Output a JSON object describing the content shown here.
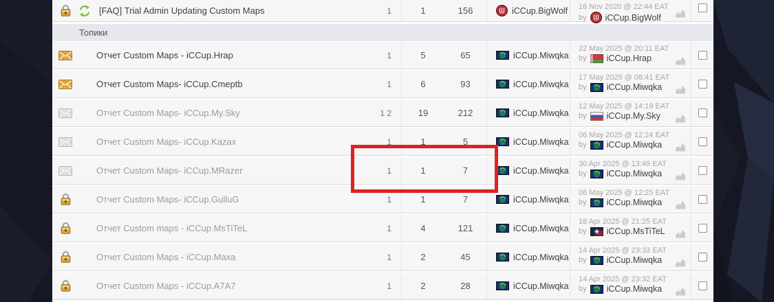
{
  "section_header": "Топики",
  "colors": {
    "annotation_red": "#dd2222",
    "page_link_blue": "#4d79b2",
    "unread_title": "#3f3f3f",
    "read_title": "#9b9b9b",
    "section_bar_bg": "#e6e8ee",
    "dark_background": "#151824"
  },
  "annotation": {
    "shape": "rectangle",
    "color": "#dd2222"
  },
  "sticky_topic": {
    "status_icon": "lock-icon",
    "extra_icon": "refresh-icon",
    "unread": true,
    "title": "[FAQ] Trial Admin Updating Custom Maps",
    "pages": "1",
    "replies": "1",
    "views": "156",
    "author": {
      "name": "iCCup.BigWolf",
      "icon": "bigwolf-avatar-icon"
    },
    "last_post": {
      "date": "16 Nov 2020 @ 22:44 EAT",
      "by_label": "by",
      "user": "iCCup.BigWolf",
      "icon": "bigwolf-avatar-icon"
    }
  },
  "topics": [
    {
      "status_icon": "envelope-new-icon",
      "unread": true,
      "title": "Отчет Custom Maps - iCCup.Hrap",
      "pages": "1",
      "replies": "5",
      "views": "65",
      "author": {
        "name": "iCCup.Miwqka",
        "icon": "miwqka-flag-icon"
      },
      "last_post": {
        "date": "22 May 2025 @ 20:11 EAT",
        "by_label": "by",
        "user": "iCCup.Hrap",
        "icon": "belarus-flag-icon"
      }
    },
    {
      "status_icon": "envelope-new-icon",
      "unread": true,
      "title": "Отчет Custom Maps- iCCup.Cmeptb",
      "pages": "1",
      "replies": "6",
      "views": "93",
      "author": {
        "name": "iCCup.Miwqka",
        "icon": "miwqka-flag-icon"
      },
      "last_post": {
        "date": "17 May 2025 @ 08:41 EAT",
        "by_label": "by",
        "user": "iCCup.Miwqka",
        "icon": "miwqka-flag-icon"
      }
    },
    {
      "status_icon": "envelope-read-icon",
      "unread": false,
      "title": "Отчет Custom Maps- iCCup.My.Sky",
      "pages": "1 2",
      "replies": "19",
      "views": "212",
      "author": {
        "name": "iCCup.Miwqka",
        "icon": "miwqka-flag-icon"
      },
      "last_post": {
        "date": "12 May 2025 @ 14:19 EAT",
        "by_label": "by",
        "user": "iCCup.My.Sky",
        "icon": "russia-flag-icon"
      }
    },
    {
      "status_icon": "envelope-read-icon",
      "unread": false,
      "title": "Отчет Custom Maps- iCCup.Kazax",
      "pages": "1",
      "replies": "1",
      "views": "5",
      "author": {
        "name": "iCCup.Miwqka",
        "icon": "miwqka-flag-icon"
      },
      "last_post": {
        "date": "06 May 2025 @ 12:24 EAT",
        "by_label": "by",
        "user": "iCCup.Miwqka",
        "icon": "miwqka-flag-icon"
      }
    },
    {
      "status_icon": "envelope-read-icon",
      "unread": false,
      "highlighted": true,
      "title": "Отчет Custom Maps- iCCup.MRazer",
      "pages": "1",
      "replies": "1",
      "views": "7",
      "author": {
        "name": "iCCup.Miwqka",
        "icon": "miwqka-flag-icon"
      },
      "last_post": {
        "date": "30 Apr 2025 @ 13:49 EAT",
        "by_label": "by",
        "user": "iCCup.Miwqka",
        "icon": "miwqka-flag-icon"
      }
    },
    {
      "status_icon": "lock-icon",
      "unread": false,
      "title": "Отчет Custom Maps- iCCup.GulluG",
      "pages": "1",
      "replies": "1",
      "views": "7",
      "author": {
        "name": "iCCup.Miwqka",
        "icon": "miwqka-flag-icon"
      },
      "last_post": {
        "date": "06 May 2025 @ 12:25 EAT",
        "by_label": "by",
        "user": "iCCup.Miwqka",
        "icon": "miwqka-flag-icon"
      }
    },
    {
      "status_icon": "lock-icon",
      "unread": false,
      "title": "Отчет Custom maps - iCCup.MsTiTeL",
      "pages": "1",
      "replies": "4",
      "views": "121",
      "author": {
        "name": "iCCup.Miwqka",
        "icon": "miwqka-flag-icon"
      },
      "last_post": {
        "date": "18 Apr 2025 @ 21:25 EAT",
        "by_label": "by",
        "user": "iCCup.MsTiTeL",
        "icon": "mstitel-avatar-icon"
      }
    },
    {
      "status_icon": "lock-icon",
      "unread": false,
      "title": "Отчет Custom Maps - iCCup.Maxa",
      "pages": "1",
      "replies": "2",
      "views": "45",
      "author": {
        "name": "iCCup.Miwqka",
        "icon": "miwqka-flag-icon"
      },
      "last_post": {
        "date": "14 Apr 2025 @ 23:33 EAT",
        "by_label": "by",
        "user": "iCCup.Miwqka",
        "icon": "miwqka-flag-icon"
      }
    },
    {
      "status_icon": "lock-icon",
      "unread": false,
      "title": "Отчет Custom Maps - iCCup.A7A7",
      "pages": "1",
      "replies": "2",
      "views": "28",
      "author": {
        "name": "iCCup.Miwqka",
        "icon": "miwqka-flag-icon"
      },
      "last_post": {
        "date": "14 Apr 2025 @ 23:32 EAT",
        "by_label": "by",
        "user": "iCCup.Miwqka",
        "icon": "miwqka-flag-icon"
      }
    }
  ]
}
